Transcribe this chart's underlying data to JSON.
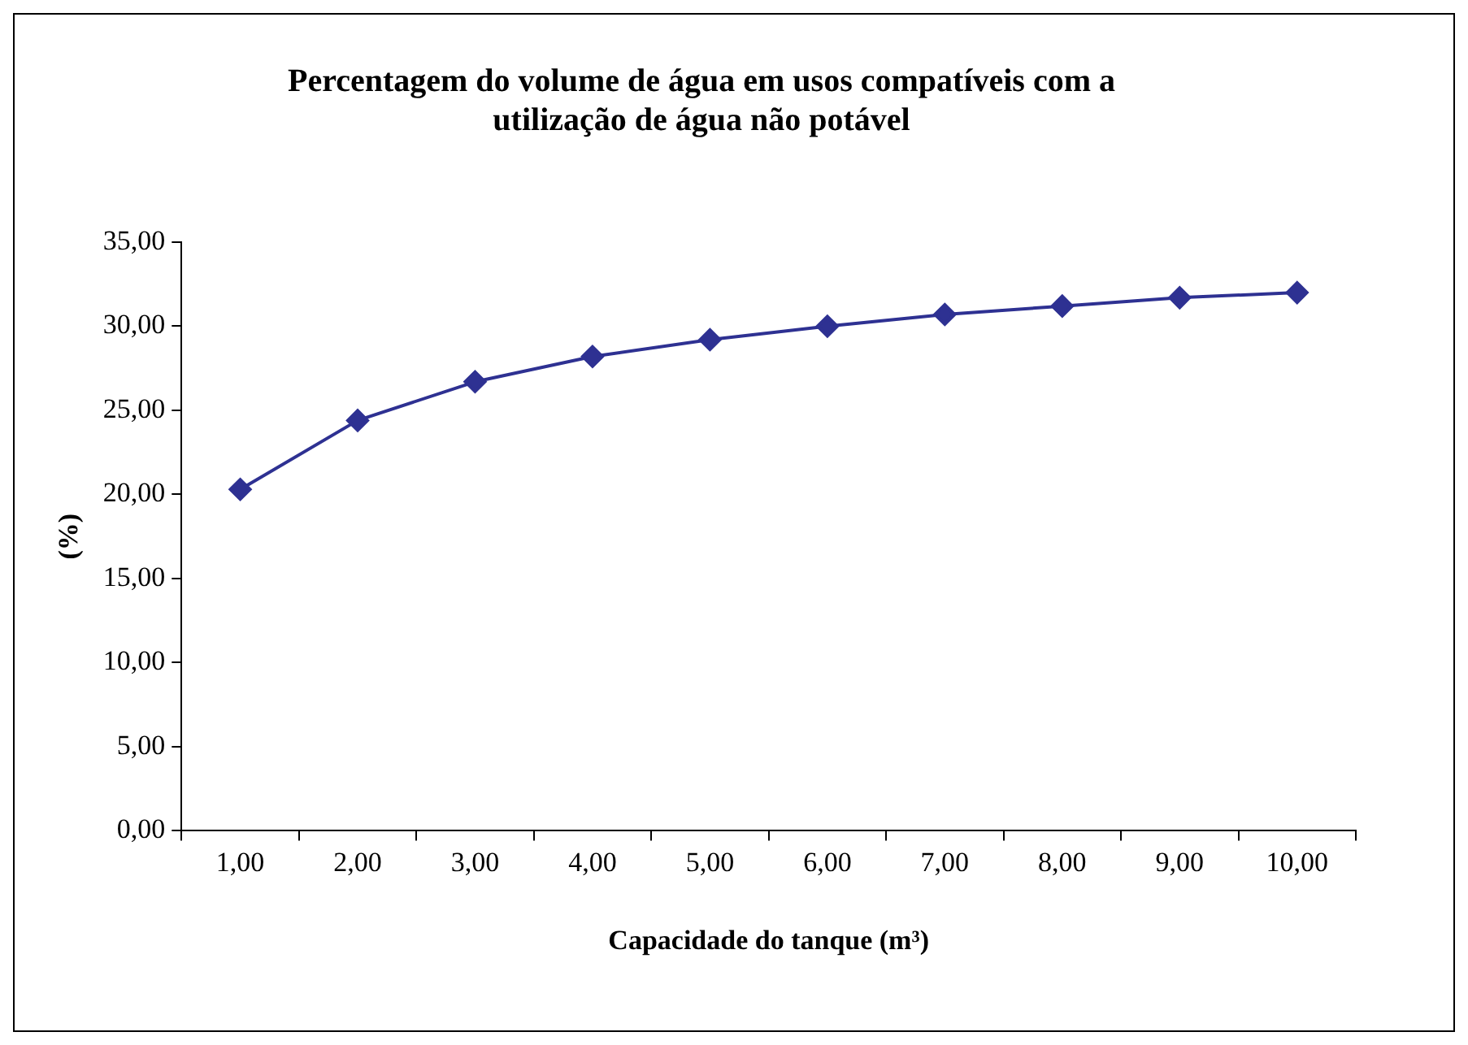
{
  "chart_data": {
    "type": "line",
    "title": "Percentagem do volume de água em usos compatíveis com a utilização de água não potável",
    "xlabel": "Capacidade do tanque (m³)",
    "ylabel": "(%)",
    "categories": [
      "1,00",
      "2,00",
      "3,00",
      "4,00",
      "5,00",
      "6,00",
      "7,00",
      "8,00",
      "9,00",
      "10,00"
    ],
    "series": [
      {
        "color": "#2e3192",
        "values": [
          20.3,
          24.4,
          26.7,
          28.2,
          29.2,
          30.0,
          30.7,
          31.2,
          31.7,
          32.0
        ]
      }
    ],
    "ylim": [
      0,
      35
    ],
    "yticks": [
      {
        "value": 0,
        "label": "0,00"
      },
      {
        "value": 5,
        "label": "5,00"
      },
      {
        "value": 10,
        "label": "10,00"
      },
      {
        "value": 15,
        "label": "15,00"
      },
      {
        "value": 20,
        "label": "20,00"
      },
      {
        "value": 25,
        "label": "25,00"
      },
      {
        "value": 30,
        "label": "30,00"
      },
      {
        "value": 35,
        "label": "35,00"
      }
    ],
    "grid": false,
    "legend": false,
    "marker": "diamond",
    "line_style": "solid"
  }
}
